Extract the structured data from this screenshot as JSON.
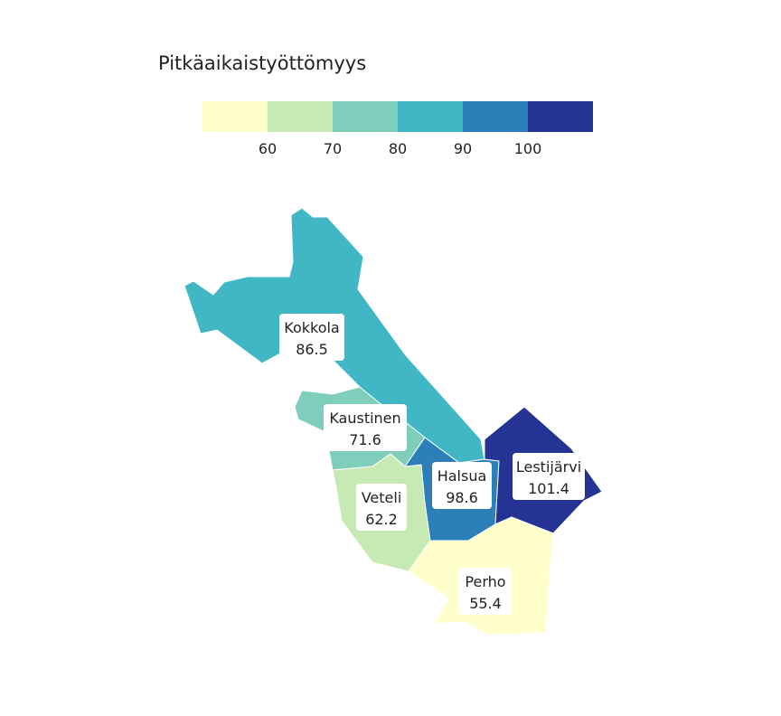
{
  "map": {
    "title": "Pitkäaikaistyöttömyys",
    "legend": {
      "breaks": [
        "60",
        "70",
        "80",
        "90",
        "100"
      ],
      "colors": [
        "#FFFFCC",
        "#C7E9B4",
        "#7FCDBB",
        "#41B6C4",
        "#2C7FB8",
        "#253494"
      ]
    },
    "regions": [
      {
        "name": "Kokkola",
        "value": "86.5",
        "color": "#41B6C4"
      },
      {
        "name": "Kaustinen",
        "value": "71.6",
        "color": "#7FCDBB"
      },
      {
        "name": "Veteli",
        "value": "62.2",
        "color": "#C7E9B4"
      },
      {
        "name": "Halsua",
        "value": "98.6",
        "color": "#2C7FB8"
      },
      {
        "name": "Lestijärvi",
        "value": "101.4",
        "color": "#253494"
      },
      {
        "name": "Perho",
        "value": "55.4",
        "color": "#FFFFCC"
      }
    ]
  }
}
